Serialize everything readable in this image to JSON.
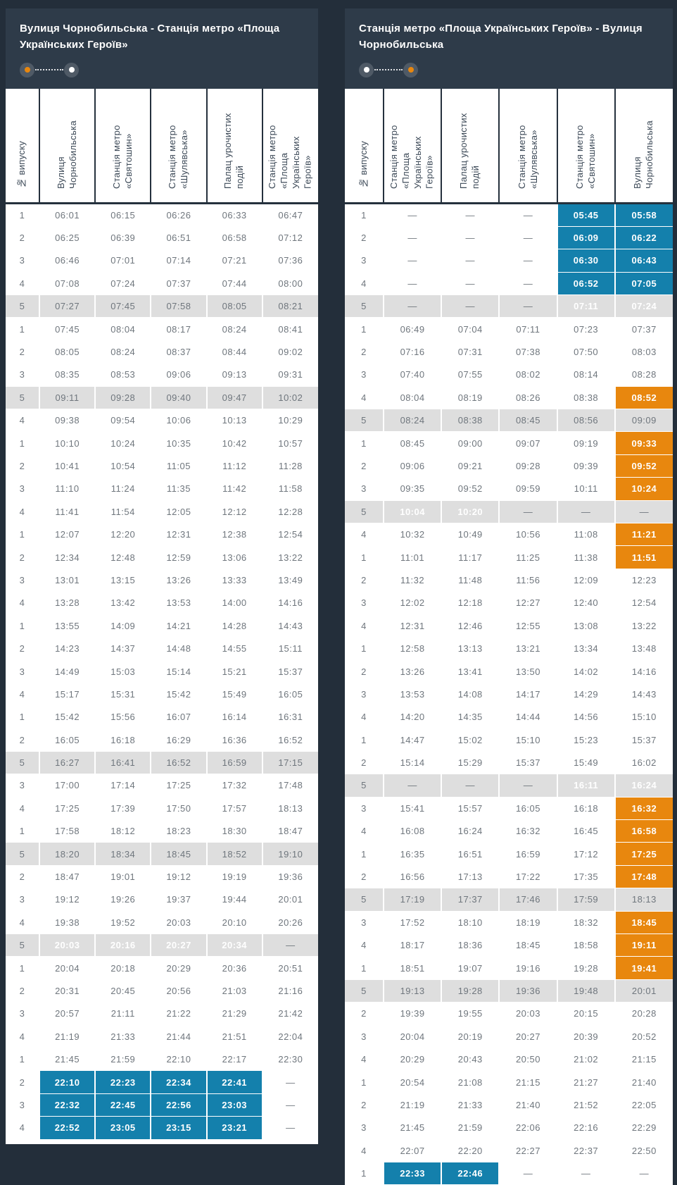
{
  "colors": {
    "page_background": "#232e3a",
    "panel_header_background": "#2e3b49",
    "table_border_dark": "#25313d",
    "highlight_blue": "#1480ac",
    "highlight_orange": "#e8870e",
    "row_gray": "#dedede",
    "time_text": "#6f767d",
    "header_text": "#ffffff",
    "column_header_text": "#3c4957"
  },
  "panels": [
    {
      "id": "outbound",
      "title": "Вулиця Чорнобильська - Станція метро «Площа Українських Героїв»",
      "toggle_dots": [
        "orange",
        "white"
      ],
      "columns": [
        "№ випуску",
        "Вулиця Чорнобильська",
        "Станція метро «Святошин»",
        "Станція метро «Шулявська»",
        "Палац урочистих подій",
        "Станція метро «Площа Українських Героїв»"
      ],
      "rows": [
        {
          "no": "1",
          "times": [
            "06:01",
            "06:15",
            "06:26",
            "06:33",
            "06:47"
          ]
        },
        {
          "no": "2",
          "times": [
            "06:25",
            "06:39",
            "06:51",
            "06:58",
            "07:12"
          ]
        },
        {
          "no": "3",
          "times": [
            "06:46",
            "07:01",
            "07:14",
            "07:21",
            "07:36"
          ]
        },
        {
          "no": "4",
          "times": [
            "07:08",
            "07:24",
            "07:37",
            "07:44",
            "08:00"
          ]
        },
        {
          "no": "5",
          "gray": true,
          "times": [
            "07:27",
            "07:45",
            "07:58",
            "08:05",
            "08:21"
          ]
        },
        {
          "no": "1",
          "times": [
            "07:45",
            "08:04",
            "08:17",
            "08:24",
            "08:41"
          ]
        },
        {
          "no": "2",
          "times": [
            "08:05",
            "08:24",
            "08:37",
            "08:44",
            "09:02"
          ]
        },
        {
          "no": "3",
          "times": [
            "08:35",
            "08:53",
            "09:06",
            "09:13",
            "09:31"
          ]
        },
        {
          "no": "5",
          "gray": true,
          "times": [
            "09:11",
            "09:28",
            "09:40",
            "09:47",
            "10:02"
          ]
        },
        {
          "no": "4",
          "times": [
            "09:38",
            "09:54",
            "10:06",
            "10:13",
            "10:29"
          ]
        },
        {
          "no": "1",
          "times": [
            "10:10",
            "10:24",
            "10:35",
            "10:42",
            "10:57"
          ]
        },
        {
          "no": "2",
          "times": [
            "10:41",
            "10:54",
            "11:05",
            "11:12",
            "11:28"
          ]
        },
        {
          "no": "3",
          "times": [
            "11:10",
            "11:24",
            "11:35",
            "11:42",
            "11:58"
          ]
        },
        {
          "no": "4",
          "times": [
            "11:41",
            "11:54",
            "12:05",
            "12:12",
            "12:28"
          ]
        },
        {
          "no": "1",
          "times": [
            "12:07",
            "12:20",
            "12:31",
            "12:38",
            "12:54"
          ]
        },
        {
          "no": "2",
          "times": [
            "12:34",
            "12:48",
            "12:59",
            "13:06",
            "13:22"
          ]
        },
        {
          "no": "3",
          "times": [
            "13:01",
            "13:15",
            "13:26",
            "13:33",
            "13:49"
          ]
        },
        {
          "no": "4",
          "times": [
            "13:28",
            "13:42",
            "13:53",
            "14:00",
            "14:16"
          ]
        },
        {
          "no": "1",
          "times": [
            "13:55",
            "14:09",
            "14:21",
            "14:28",
            "14:43"
          ]
        },
        {
          "no": "2",
          "times": [
            "14:23",
            "14:37",
            "14:48",
            "14:55",
            "15:11"
          ]
        },
        {
          "no": "3",
          "times": [
            "14:49",
            "15:03",
            "15:14",
            "15:21",
            "15:37"
          ]
        },
        {
          "no": "4",
          "times": [
            "15:17",
            "15:31",
            "15:42",
            "15:49",
            "16:05"
          ]
        },
        {
          "no": "1",
          "times": [
            "15:42",
            "15:56",
            "16:07",
            "16:14",
            "16:31"
          ]
        },
        {
          "no": "2",
          "times": [
            "16:05",
            "16:18",
            "16:29",
            "16:36",
            "16:52"
          ]
        },
        {
          "no": "5",
          "gray": true,
          "times": [
            "16:27",
            "16:41",
            "16:52",
            "16:59",
            "17:15"
          ]
        },
        {
          "no": "3",
          "times": [
            "17:00",
            "17:14",
            "17:25",
            "17:32",
            "17:48"
          ]
        },
        {
          "no": "4",
          "times": [
            "17:25",
            "17:39",
            "17:50",
            "17:57",
            "18:13"
          ]
        },
        {
          "no": "1",
          "times": [
            "17:58",
            "18:12",
            "18:23",
            "18:30",
            "18:47"
          ]
        },
        {
          "no": "5",
          "gray": true,
          "times": [
            "18:20",
            "18:34",
            "18:45",
            "18:52",
            "19:10"
          ]
        },
        {
          "no": "2",
          "times": [
            "18:47",
            "19:01",
            "19:12",
            "19:19",
            "19:36"
          ]
        },
        {
          "no": "3",
          "times": [
            "19:12",
            "19:26",
            "19:37",
            "19:44",
            "20:01"
          ]
        },
        {
          "no": "4",
          "times": [
            "19:38",
            "19:52",
            "20:03",
            "20:10",
            "20:26"
          ]
        },
        {
          "no": "5",
          "gray": true,
          "times": [
            "20:03",
            "20:16",
            "20:27",
            "20:34",
            "—"
          ],
          "hl": "bbbb-"
        },
        {
          "no": "1",
          "times": [
            "20:04",
            "20:18",
            "20:29",
            "20:36",
            "20:51"
          ]
        },
        {
          "no": "2",
          "times": [
            "20:31",
            "20:45",
            "20:56",
            "21:03",
            "21:16"
          ]
        },
        {
          "no": "3",
          "times": [
            "20:57",
            "21:11",
            "21:22",
            "21:29",
            "21:42"
          ]
        },
        {
          "no": "4",
          "times": [
            "21:19",
            "21:33",
            "21:44",
            "21:51",
            "22:04"
          ]
        },
        {
          "no": "1",
          "times": [
            "21:45",
            "21:59",
            "22:10",
            "22:17",
            "22:30"
          ]
        },
        {
          "no": "2",
          "times": [
            "22:10",
            "22:23",
            "22:34",
            "22:41",
            "—"
          ],
          "hl": "bbbb-"
        },
        {
          "no": "3",
          "times": [
            "22:32",
            "22:45",
            "22:56",
            "23:03",
            "—"
          ],
          "hl": "bbbb-"
        },
        {
          "no": "4",
          "times": [
            "22:52",
            "23:05",
            "23:15",
            "23:21",
            "—"
          ],
          "hl": "bbbb-"
        }
      ]
    },
    {
      "id": "inbound",
      "title": "Станція метро «Площа Українських Героїв» - Вулиця Чорнобильська",
      "toggle_dots": [
        "white",
        "orange"
      ],
      "columns": [
        "№ випуску",
        "Станція метро «Площа Українських Героїв»",
        "Палац урочистих подій",
        "Станція метро «Шулявська»",
        "Станція метро «Святошин»",
        "Вулиця Чорнобильська"
      ],
      "rows": [
        {
          "no": "1",
          "times": [
            "—",
            "—",
            "—",
            "05:45",
            "05:58"
          ],
          "hl": "---bb"
        },
        {
          "no": "2",
          "times": [
            "—",
            "—",
            "—",
            "06:09",
            "06:22"
          ],
          "hl": "---bb"
        },
        {
          "no": "3",
          "times": [
            "—",
            "—",
            "—",
            "06:30",
            "06:43"
          ],
          "hl": "---bb"
        },
        {
          "no": "4",
          "times": [
            "—",
            "—",
            "—",
            "06:52",
            "07:05"
          ],
          "hl": "---bb"
        },
        {
          "no": "5",
          "gray": true,
          "times": [
            "—",
            "—",
            "—",
            "07:11",
            "07:24"
          ],
          "hl": "---bb"
        },
        {
          "no": "1",
          "times": [
            "06:49",
            "07:04",
            "07:11",
            "07:23",
            "07:37"
          ]
        },
        {
          "no": "2",
          "times": [
            "07:16",
            "07:31",
            "07:38",
            "07:50",
            "08:03"
          ]
        },
        {
          "no": "3",
          "times": [
            "07:40",
            "07:55",
            "08:02",
            "08:14",
            "08:28"
          ]
        },
        {
          "no": "4",
          "times": [
            "08:04",
            "08:19",
            "08:26",
            "08:38",
            "08:52"
          ],
          "hl": "----o"
        },
        {
          "no": "5",
          "gray": true,
          "times": [
            "08:24",
            "08:38",
            "08:45",
            "08:56",
            "09:09"
          ]
        },
        {
          "no": "1",
          "times": [
            "08:45",
            "09:00",
            "09:07",
            "09:19",
            "09:33"
          ],
          "hl": "----o"
        },
        {
          "no": "2",
          "times": [
            "09:06",
            "09:21",
            "09:28",
            "09:39",
            "09:52"
          ],
          "hl": "----o"
        },
        {
          "no": "3",
          "times": [
            "09:35",
            "09:52",
            "09:59",
            "10:11",
            "10:24"
          ],
          "hl": "----o"
        },
        {
          "no": "5",
          "gray": true,
          "times": [
            "10:04",
            "10:20",
            "—",
            "—",
            "—"
          ],
          "hl": "bb---"
        },
        {
          "no": "4",
          "times": [
            "10:32",
            "10:49",
            "10:56",
            "11:08",
            "11:21"
          ],
          "hl": "----o"
        },
        {
          "no": "1",
          "times": [
            "11:01",
            "11:17",
            "11:25",
            "11:38",
            "11:51"
          ],
          "hl": "----o"
        },
        {
          "no": "2",
          "times": [
            "11:32",
            "11:48",
            "11:56",
            "12:09",
            "12:23"
          ]
        },
        {
          "no": "3",
          "times": [
            "12:02",
            "12:18",
            "12:27",
            "12:40",
            "12:54"
          ]
        },
        {
          "no": "4",
          "times": [
            "12:31",
            "12:46",
            "12:55",
            "13:08",
            "13:22"
          ]
        },
        {
          "no": "1",
          "times": [
            "12:58",
            "13:13",
            "13:21",
            "13:34",
            "13:48"
          ]
        },
        {
          "no": "2",
          "times": [
            "13:26",
            "13:41",
            "13:50",
            "14:02",
            "14:16"
          ]
        },
        {
          "no": "3",
          "times": [
            "13:53",
            "14:08",
            "14:17",
            "14:29",
            "14:43"
          ]
        },
        {
          "no": "4",
          "times": [
            "14:20",
            "14:35",
            "14:44",
            "14:56",
            "15:10"
          ]
        },
        {
          "no": "1",
          "times": [
            "14:47",
            "15:02",
            "15:10",
            "15:23",
            "15:37"
          ]
        },
        {
          "no": "2",
          "times": [
            "15:14",
            "15:29",
            "15:37",
            "15:49",
            "16:02"
          ]
        },
        {
          "no": "5",
          "gray": true,
          "times": [
            "—",
            "—",
            "—",
            "16:11",
            "16:24"
          ],
          "hl": "---bb"
        },
        {
          "no": "3",
          "times": [
            "15:41",
            "15:57",
            "16:05",
            "16:18",
            "16:32"
          ],
          "hl": "----o"
        },
        {
          "no": "4",
          "times": [
            "16:08",
            "16:24",
            "16:32",
            "16:45",
            "16:58"
          ],
          "hl": "----o"
        },
        {
          "no": "1",
          "times": [
            "16:35",
            "16:51",
            "16:59",
            "17:12",
            "17:25"
          ],
          "hl": "----o"
        },
        {
          "no": "2",
          "times": [
            "16:56",
            "17:13",
            "17:22",
            "17:35",
            "17:48"
          ],
          "hl": "----o"
        },
        {
          "no": "5",
          "gray": true,
          "times": [
            "17:19",
            "17:37",
            "17:46",
            "17:59",
            "18:13"
          ]
        },
        {
          "no": "3",
          "times": [
            "17:52",
            "18:10",
            "18:19",
            "18:32",
            "18:45"
          ],
          "hl": "----o"
        },
        {
          "no": "4",
          "times": [
            "18:17",
            "18:36",
            "18:45",
            "18:58",
            "19:11"
          ],
          "hl": "----o"
        },
        {
          "no": "1",
          "times": [
            "18:51",
            "19:07",
            "19:16",
            "19:28",
            "19:41"
          ],
          "hl": "----o"
        },
        {
          "no": "5",
          "gray": true,
          "times": [
            "19:13",
            "19:28",
            "19:36",
            "19:48",
            "20:01"
          ]
        },
        {
          "no": "2",
          "times": [
            "19:39",
            "19:55",
            "20:03",
            "20:15",
            "20:28"
          ]
        },
        {
          "no": "3",
          "times": [
            "20:04",
            "20:19",
            "20:27",
            "20:39",
            "20:52"
          ]
        },
        {
          "no": "4",
          "times": [
            "20:29",
            "20:43",
            "20:50",
            "21:02",
            "21:15"
          ]
        },
        {
          "no": "1",
          "times": [
            "20:54",
            "21:08",
            "21:15",
            "21:27",
            "21:40"
          ]
        },
        {
          "no": "2",
          "times": [
            "21:19",
            "21:33",
            "21:40",
            "21:52",
            "22:05"
          ]
        },
        {
          "no": "3",
          "times": [
            "21:45",
            "21:59",
            "22:06",
            "22:16",
            "22:29"
          ]
        },
        {
          "no": "4",
          "times": [
            "22:07",
            "22:20",
            "22:27",
            "22:37",
            "22:50"
          ]
        },
        {
          "no": "1",
          "times": [
            "22:33",
            "22:46",
            "—",
            "—",
            "—"
          ],
          "hl": "bb---"
        }
      ]
    }
  ]
}
